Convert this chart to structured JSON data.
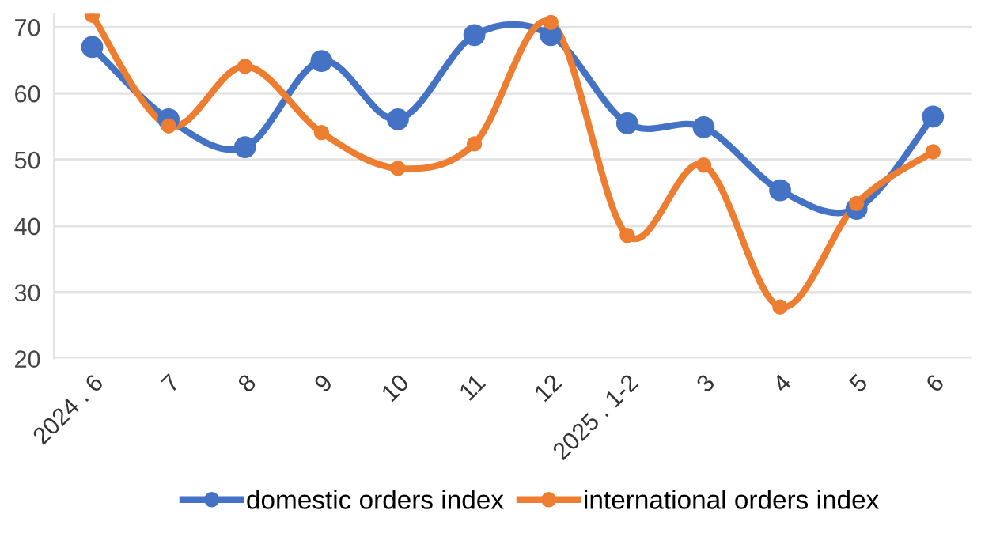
{
  "chart_data": {
    "type": "line",
    "categories": [
      "2024 . 6",
      "7",
      "8",
      "9",
      "10",
      "11",
      "12",
      "2025 . 1-2",
      "3",
      "4",
      "5",
      "6"
    ],
    "series": [
      {
        "name": "domestic orders index",
        "color": "#4472c4",
        "values": [
          67,
          56.1,
          51.9,
          64.9,
          56.1,
          68.8,
          68.8,
          55.5,
          54.9,
          45.4,
          42.6,
          56.5
        ]
      },
      {
        "name": "international orders index",
        "color": "#ed7d31",
        "values": [
          71.8,
          55.1,
          64.1,
          54.1,
          48.7,
          52.4,
          70.7,
          38.6,
          49.2,
          27.8,
          43.4,
          51.2
        ]
      }
    ],
    "ylim": [
      20,
      72
    ],
    "yticks": [
      20,
      30,
      40,
      50,
      60,
      70
    ],
    "grid": "y",
    "legend": "bottom",
    "marker": "circle",
    "line_style": "solid"
  }
}
